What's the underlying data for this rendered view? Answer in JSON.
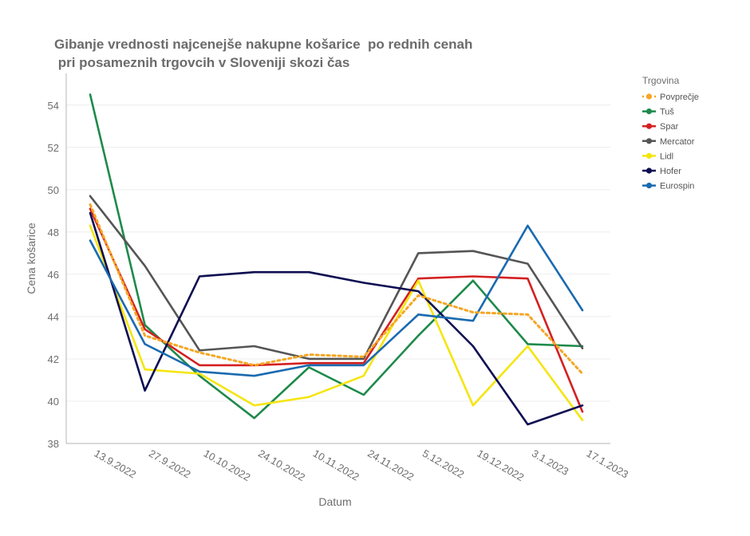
{
  "chart_data": {
    "type": "line",
    "title_lines": [
      "Gibanje vrednosti najcenejše nakupne košarice  po rednih cenah",
      " pri posameznih trgovcih v Sloveniji skozi čas"
    ],
    "xlabel": "Datum",
    "ylabel": "Cena košarice",
    "categories": [
      "13.9.2022",
      "27.9.2022",
      "10.10.2022",
      "24.10.2022",
      "10.11.2022",
      "24.11.2022",
      "5.12.2022",
      "19.12.2022",
      "3.1.2023",
      "17.1.2023"
    ],
    "ylim": [
      38,
      55.5
    ],
    "yticks": [
      38,
      40,
      42,
      44,
      46,
      48,
      50,
      52,
      54
    ],
    "grid": true,
    "legend": {
      "title": "Trgovina",
      "placement": "right"
    },
    "series": [
      {
        "name": "Povprečje",
        "color": "#f5a623",
        "dashed": true,
        "values": [
          49.3,
          43.1,
          42.3,
          41.7,
          42.2,
          42.1,
          45.0,
          44.2,
          44.1,
          41.3
        ]
      },
      {
        "name": "Tuš",
        "color": "#1e8a4a",
        "dashed": false,
        "values": [
          54.5,
          43.6,
          41.2,
          39.2,
          41.6,
          40.3,
          43.1,
          45.7,
          42.7,
          42.6
        ]
      },
      {
        "name": "Spar",
        "color": "#d42020",
        "dashed": false,
        "values": [
          49.1,
          43.4,
          41.7,
          41.7,
          41.8,
          41.8,
          45.8,
          45.9,
          45.8,
          39.5
        ]
      },
      {
        "name": "Mercator",
        "color": "#555555",
        "dashed": false,
        "values": [
          49.7,
          46.4,
          42.4,
          42.6,
          42.0,
          42.0,
          47.0,
          47.1,
          46.5,
          42.5
        ]
      },
      {
        "name": "Lidl",
        "color": "#f5e510",
        "dashed": false,
        "values": [
          48.3,
          41.5,
          41.3,
          39.8,
          40.2,
          41.2,
          45.7,
          39.8,
          42.6,
          39.1
        ]
      },
      {
        "name": "Hofer",
        "color": "#0d0d52",
        "dashed": false,
        "values": [
          48.9,
          40.5,
          45.9,
          46.1,
          46.1,
          45.6,
          45.2,
          42.6,
          38.9,
          39.8
        ]
      },
      {
        "name": "Eurospin",
        "color": "#1a6ab0",
        "dashed": false,
        "values": [
          47.6,
          42.7,
          41.4,
          41.2,
          41.7,
          41.7,
          44.1,
          43.8,
          48.3,
          44.3
        ]
      }
    ]
  }
}
